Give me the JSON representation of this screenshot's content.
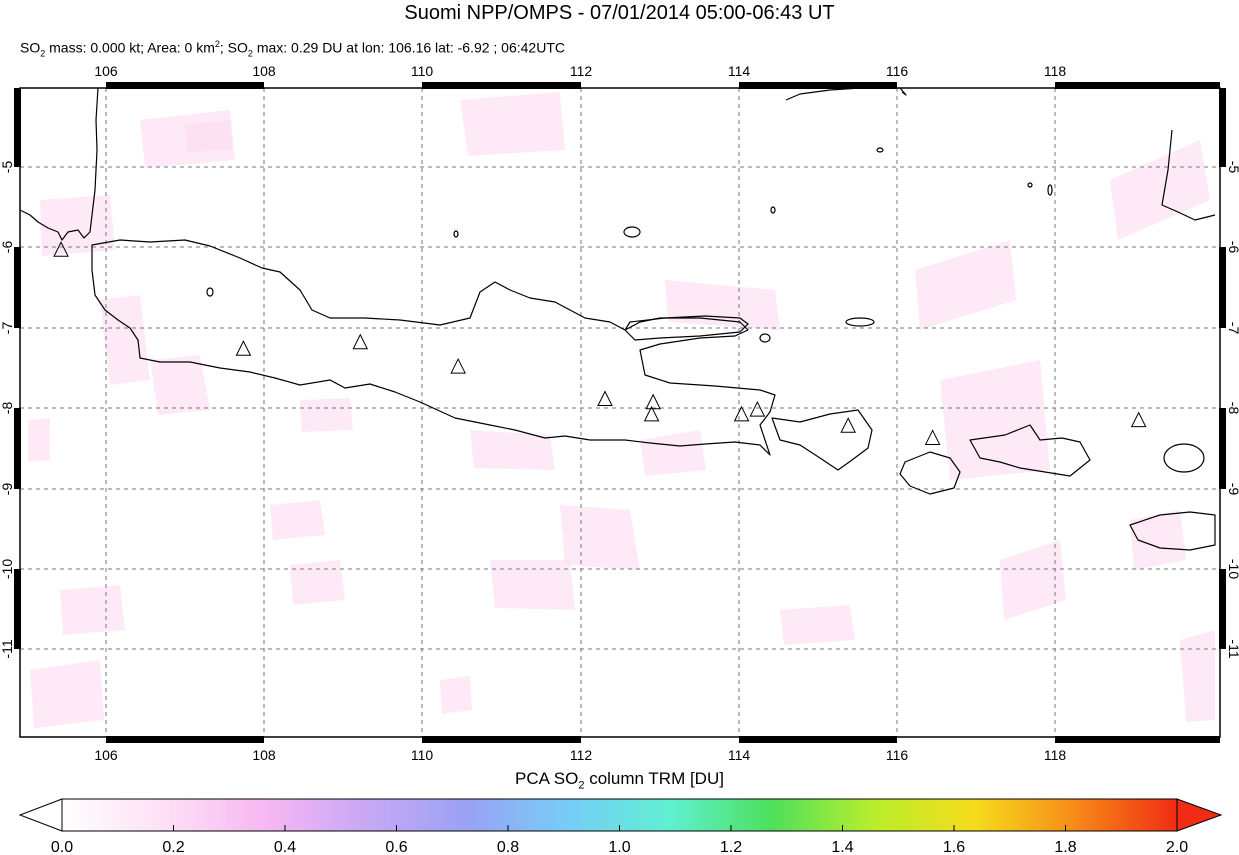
{
  "title": "Suomi NPP/OMPS - 07/01/2014 05:00-06:43 UT",
  "subtitle": {
    "so2_mass_label": "SO",
    "so2_mass_rest": " mass: 0.000 kt; Area: 0 km",
    "area_sup": "2",
    "so2_max_label": "; SO",
    "so2_max_rest": " max: 0.29 DU at lon: 106.16 lat: -6.92 ; 06:42UTC",
    "sub2": "2"
  },
  "map": {
    "lon_ticks": [
      "106",
      "108",
      "110",
      "112",
      "114",
      "116",
      "118"
    ],
    "lat_ticks": [
      "-5",
      "-6",
      "-7",
      "-8",
      "-9",
      "-10",
      "-11"
    ],
    "lon_range": [
      104.9,
      120.1
    ],
    "lat_range": [
      -12.1,
      -4.1
    ],
    "grid": true,
    "volcano_marker": "triangle-icon",
    "volcanoes": [
      {
        "lon": 105.42,
        "lat": -6.1
      },
      {
        "lon": 107.73,
        "lat": -7.32
      },
      {
        "lon": 109.21,
        "lat": -7.24
      },
      {
        "lon": 110.45,
        "lat": -7.54
      },
      {
        "lon": 112.31,
        "lat": -7.94
      },
      {
        "lon": 112.92,
        "lat": -7.98
      },
      {
        "lon": 112.9,
        "lat": -8.13
      },
      {
        "lon": 114.04,
        "lat": -8.13
      },
      {
        "lon": 114.24,
        "lat": -8.07
      },
      {
        "lon": 115.39,
        "lat": -8.27
      },
      {
        "lon": 116.46,
        "lat": -8.42
      },
      {
        "lon": 119.07,
        "lat": -8.2
      }
    ]
  },
  "colorbar": {
    "title_pre": "PCA SO",
    "title_sub": "2",
    "title_post": " column TRM [DU]",
    "tick_labels": [
      "0.0",
      "0.2",
      "0.4",
      "0.6",
      "0.8",
      "1.0",
      "1.2",
      "1.4",
      "1.6",
      "1.8",
      "2.0"
    ],
    "range": [
      0.0,
      2.0
    ],
    "colors": [
      "#ffffff",
      "#fde0f4",
      "#f7b8f3",
      "#c8a8f4",
      "#9aa2f4",
      "#76cdf6",
      "#5ff0d2",
      "#4ee05c",
      "#b8ee2c",
      "#f5dc1c",
      "#f78a18",
      "#f02c14"
    ]
  }
}
